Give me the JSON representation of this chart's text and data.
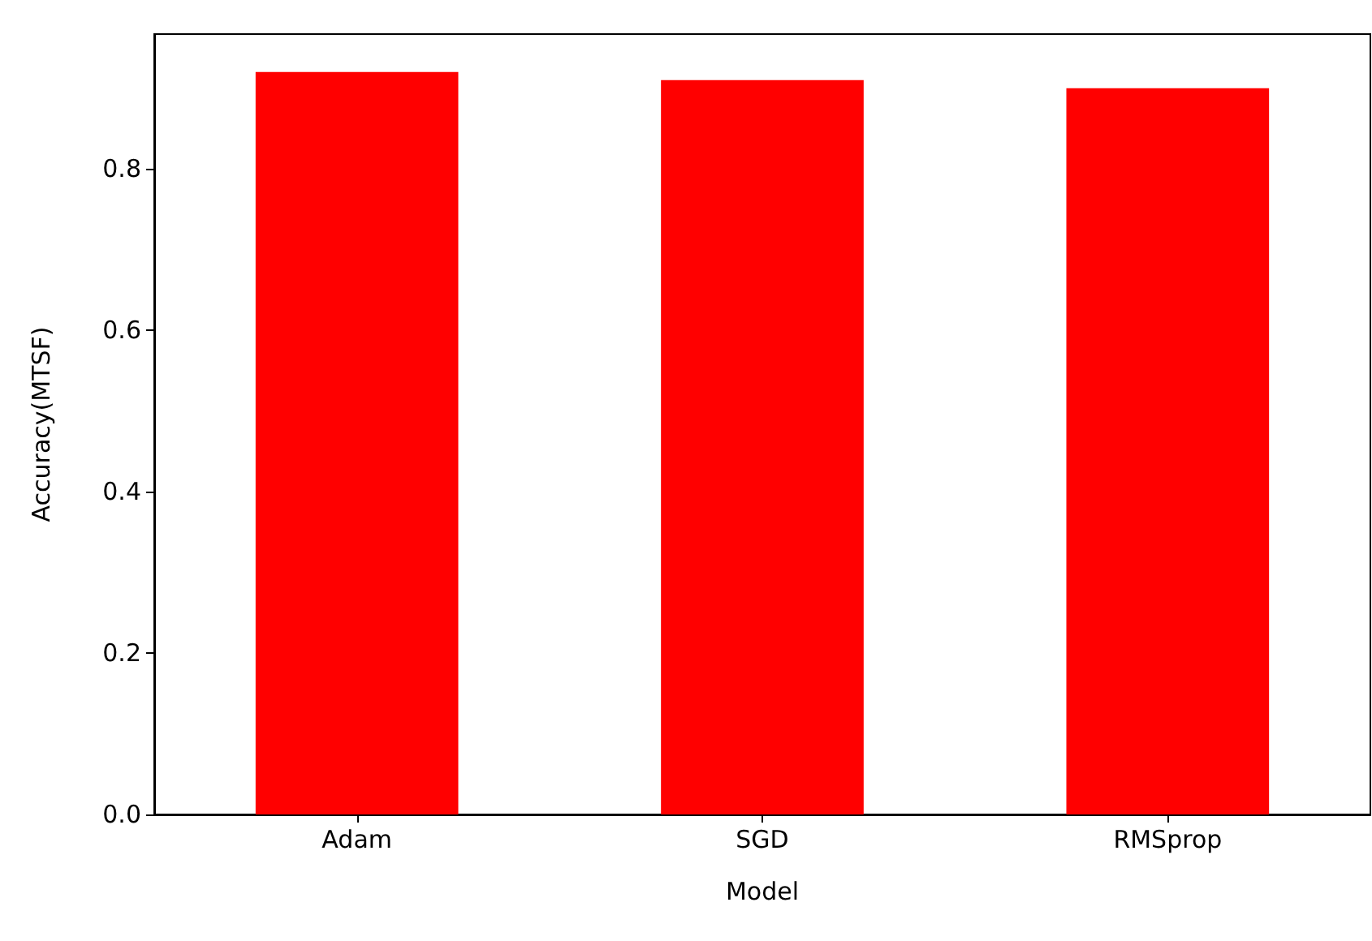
{
  "chart_data": {
    "type": "bar",
    "xlabel": "Model",
    "ylabel": "Accuracy(MTSF)",
    "categories": [
      "Adam",
      "SGD",
      "RMSprop"
    ],
    "values": [
      0.92,
      0.91,
      0.9
    ],
    "color": "#ff0000",
    "ylim": [
      0,
      0.967
    ],
    "yticks": [
      {
        "value": 0,
        "label": "0.0"
      },
      {
        "value": 0.2,
        "label": "0.2"
      },
      {
        "value": 0.4,
        "label": "0.4"
      },
      {
        "value": 0.6,
        "label": "0.6"
      },
      {
        "value": 0.8,
        "label": "0.8"
      }
    ],
    "grid": false
  }
}
